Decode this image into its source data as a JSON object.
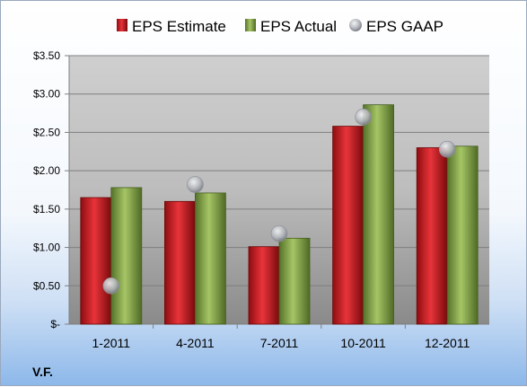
{
  "company": "V.F.",
  "chart_data": {
    "type": "bar",
    "categories": [
      "1-2011",
      "4-2011",
      "7-2011",
      "10-2011",
      "12-2011"
    ],
    "series": [
      {
        "name": "EPS Estimate",
        "kind": "bar",
        "color": "#c0141a",
        "values": [
          1.65,
          1.6,
          1.01,
          2.58,
          2.3
        ]
      },
      {
        "name": "EPS Actual",
        "kind": "bar",
        "color": "#7da13a",
        "values": [
          1.78,
          1.71,
          1.12,
          2.86,
          2.32
        ]
      },
      {
        "name": "EPS GAAP",
        "kind": "scatter",
        "color": "#b9bcc2",
        "values": [
          0.5,
          1.82,
          1.18,
          2.7,
          2.28
        ]
      }
    ],
    "ylim": [
      0,
      3.5
    ],
    "yticks": [
      0,
      0.5,
      1.0,
      1.5,
      2.0,
      2.5,
      3.0,
      3.5
    ],
    "ytick_labels": [
      "$-",
      "$0.50",
      "$1.00",
      "$1.50",
      "$2.00",
      "$2.50",
      "$3.00",
      "$3.50"
    ],
    "grid": true,
    "legend": "top"
  }
}
